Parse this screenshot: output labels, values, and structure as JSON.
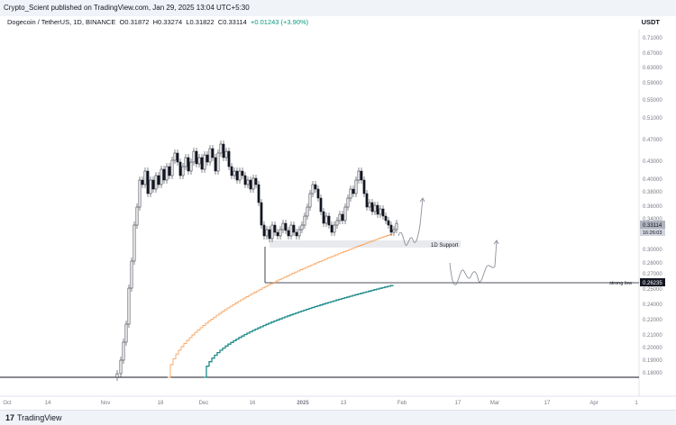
{
  "header": {
    "published": "Crypto_Scient published on TradingView.com, Jan 29, 2025 13:04 UTC+5:30"
  },
  "symbol": {
    "name": "Dogecoin / TetherUS, 1D, BINANCE",
    "open": "O0.31872",
    "high": "H0.33274",
    "low": "L0.31822",
    "close": "C0.33114",
    "change": "+0.01243 (+3.90%)"
  },
  "currency": "USDT",
  "price_axis": {
    "ticks": [
      "0.71000",
      "0.67000",
      "0.63000",
      "0.59000",
      "0.55000",
      "0.51000",
      "0.47000",
      "0.43000",
      "0.40000",
      "0.38000",
      "0.36000",
      "0.34000",
      "0.30000",
      "0.28000",
      "0.27000",
      "0.25000",
      "0.24000",
      "0.22000",
      "0.21000",
      "0.20000",
      "0.19000",
      "0.18000"
    ],
    "last_price_label": "0.33114",
    "countdown_label": "16:26:03",
    "strong_low_price": "0.26235"
  },
  "time_axis": {
    "ticks": [
      "Oct",
      "14",
      "Nov",
      "18",
      "Dec",
      "16",
      "2025",
      "13",
      "Feb",
      "17",
      "Mar",
      "17",
      "Apr",
      "1"
    ]
  },
  "annotations": {
    "support_label": "1D Support",
    "strong_low_label": "strong low"
  },
  "colors": {
    "up": "#089981",
    "candle": "#131722",
    "ma_orange": "#f7a35c",
    "ma_teal": "#1f8a8a"
  },
  "footer": {
    "brand_text": "TradingView",
    "logo_text": "17"
  }
}
